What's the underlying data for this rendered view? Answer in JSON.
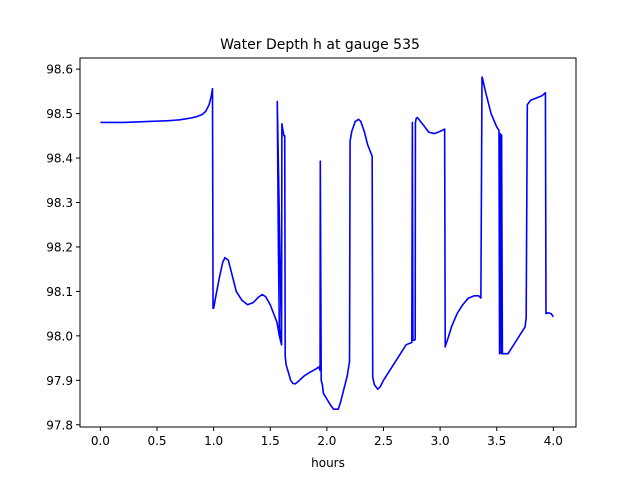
{
  "chart_data": {
    "type": "line",
    "title": "Water Depth h at gauge 535",
    "xlabel": "hours",
    "ylabel": "",
    "xlim": [
      -0.18,
      4.2
    ],
    "ylim": [
      97.795,
      98.625
    ],
    "xticks": [
      0.0,
      0.5,
      1.0,
      1.5,
      2.0,
      2.5,
      3.0,
      3.5,
      4.0
    ],
    "xtick_labels": [
      "0.0",
      "0.5",
      "1.0",
      "1.5",
      "2.0",
      "2.5",
      "3.0",
      "3.5",
      "4.0"
    ],
    "yticks": [
      97.8,
      97.9,
      98.0,
      98.1,
      98.2,
      98.3,
      98.4,
      98.5,
      98.6
    ],
    "ytick_labels": [
      "97.8",
      "97.9",
      "98.0",
      "98.1",
      "98.2",
      "98.3",
      "98.4",
      "98.5",
      "98.6"
    ],
    "grid": false,
    "series": [
      {
        "name": "",
        "color": "#0000ff",
        "x": [
          0.0,
          0.1,
          0.2,
          0.3,
          0.4,
          0.5,
          0.6,
          0.65,
          0.7,
          0.75,
          0.8,
          0.85,
          0.9,
          0.93,
          0.96,
          0.98,
          0.99,
          0.995,
          1.0,
          1.02,
          1.05,
          1.08,
          1.1,
          1.13,
          1.15,
          1.18,
          1.2,
          1.25,
          1.3,
          1.35,
          1.4,
          1.43,
          1.46,
          1.5,
          1.53,
          1.56,
          1.58,
          1.6,
          1.562,
          1.572,
          1.58,
          1.59,
          1.6,
          1.603,
          1.61,
          1.62,
          1.628,
          1.632,
          1.64,
          1.66,
          1.68,
          1.7,
          1.72,
          1.75,
          1.8,
          1.85,
          1.9,
          1.93,
          1.94,
          1.942,
          1.95,
          1.96,
          1.97,
          2.0,
          2.03,
          2.06,
          2.1,
          2.12,
          2.15,
          2.18,
          2.2,
          2.205,
          2.22,
          2.25,
          2.28,
          2.3,
          2.33,
          2.36,
          2.4,
          2.405,
          2.42,
          2.45,
          2.47,
          2.5,
          2.55,
          2.6,
          2.65,
          2.7,
          2.75,
          2.755,
          2.76,
          2.77,
          2.78,
          2.782,
          2.79,
          2.8,
          2.85,
          2.9,
          2.95,
          3.0,
          3.04,
          3.045,
          3.05,
          3.07,
          3.1,
          3.15,
          3.2,
          3.25,
          3.3,
          3.34,
          3.36,
          3.37,
          3.372,
          3.4,
          3.45,
          3.5,
          3.52,
          3.525,
          3.53,
          3.535,
          3.54,
          3.543,
          3.55,
          3.6,
          3.65,
          3.7,
          3.75,
          3.76,
          3.77,
          3.8,
          3.85,
          3.9,
          3.93,
          3.935,
          3.95,
          3.98,
          4.0
        ],
        "y": [
          98.48,
          98.48,
          98.48,
          98.481,
          98.482,
          98.483,
          98.484,
          98.485,
          98.486,
          98.488,
          98.49,
          98.493,
          98.498,
          98.505,
          98.52,
          98.54,
          98.556,
          98.062,
          98.062,
          98.09,
          98.13,
          98.165,
          98.176,
          98.17,
          98.15,
          98.12,
          98.1,
          98.08,
          98.07,
          98.075,
          98.088,
          98.093,
          98.088,
          98.07,
          98.05,
          98.03,
          98.0,
          97.98,
          98.527,
          98.2,
          98.02,
          97.99,
          97.985,
          98.477,
          98.465,
          98.45,
          98.45,
          97.955,
          97.935,
          97.918,
          97.9,
          97.893,
          97.892,
          97.898,
          97.91,
          97.918,
          97.925,
          97.93,
          97.922,
          98.393,
          97.9,
          97.89,
          97.87,
          97.858,
          97.845,
          97.835,
          97.835,
          97.85,
          97.88,
          97.91,
          97.942,
          98.438,
          98.46,
          98.482,
          98.487,
          98.482,
          98.46,
          98.43,
          98.404,
          97.907,
          97.89,
          97.88,
          97.885,
          97.9,
          97.92,
          97.94,
          97.96,
          97.98,
          97.985,
          98.48,
          97.99,
          97.99,
          97.992,
          98.48,
          98.49,
          98.491,
          98.475,
          98.458,
          98.455,
          98.46,
          98.465,
          97.975,
          97.98,
          97.995,
          98.02,
          98.05,
          98.07,
          98.085,
          98.09,
          98.09,
          98.085,
          98.582,
          98.582,
          98.55,
          98.5,
          98.47,
          98.462,
          97.96,
          98.455,
          98.44,
          97.96,
          98.452,
          97.96,
          97.96,
          97.98,
          98.0,
          98.02,
          98.04,
          98.52,
          98.53,
          98.535,
          98.54,
          98.547,
          98.05,
          98.052,
          98.05,
          98.043
        ]
      }
    ]
  }
}
